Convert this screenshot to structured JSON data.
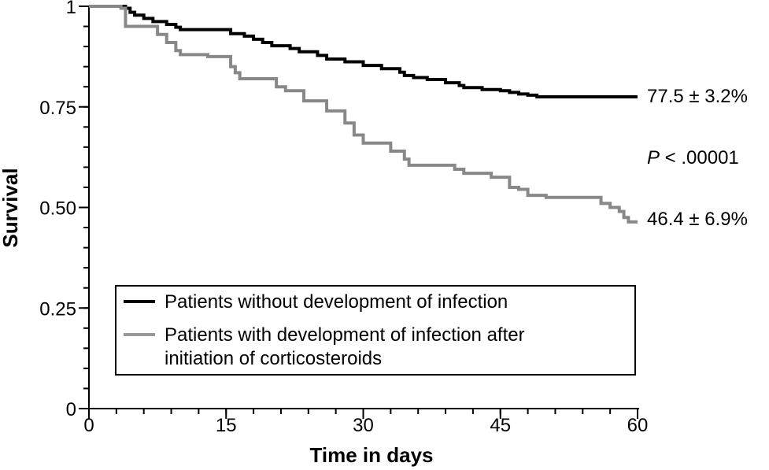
{
  "chart_data": {
    "type": "line",
    "subtype": "kaplan-meier-step",
    "xlabel": "Time in days",
    "ylabel": "Survival",
    "xlim": [
      0,
      60
    ],
    "ylim": [
      0,
      1
    ],
    "xticks": [
      0,
      15,
      30,
      45,
      60
    ],
    "xtick_labels": [
      "0",
      "15",
      "30",
      "45",
      "60"
    ],
    "yticks": [
      0,
      0.25,
      0.5,
      0.75,
      1
    ],
    "ytick_labels": [
      "0",
      "0.25",
      "0.50",
      "0.75",
      "1"
    ],
    "grid": false,
    "legend_position": "bottom-center",
    "series": [
      {
        "name": "Patients without development of infection",
        "color": "#000000",
        "end_label": "77.5 ± 3.2%",
        "points": [
          [
            0,
            1.0
          ],
          [
            4,
            0.995
          ],
          [
            4.5,
            0.985
          ],
          [
            5,
            0.978
          ],
          [
            6,
            0.97
          ],
          [
            7,
            0.962
          ],
          [
            8.5,
            0.955
          ],
          [
            9.5,
            0.948
          ],
          [
            10,
            0.942
          ],
          [
            12,
            0.942
          ],
          [
            15,
            0.942
          ],
          [
            15.5,
            0.932
          ],
          [
            17,
            0.926
          ],
          [
            18,
            0.918
          ],
          [
            19,
            0.91
          ],
          [
            20,
            0.902
          ],
          [
            22,
            0.895
          ],
          [
            23,
            0.887
          ],
          [
            25,
            0.878
          ],
          [
            26,
            0.869
          ],
          [
            28,
            0.862
          ],
          [
            30,
            0.853
          ],
          [
            32,
            0.845
          ],
          [
            34,
            0.836
          ],
          [
            34.5,
            0.828
          ],
          [
            35.5,
            0.823
          ],
          [
            37,
            0.818
          ],
          [
            39,
            0.81
          ],
          [
            40.5,
            0.803
          ],
          [
            41,
            0.798
          ],
          [
            43,
            0.793
          ],
          [
            45,
            0.79
          ],
          [
            46,
            0.786
          ],
          [
            47,
            0.782
          ],
          [
            48,
            0.779
          ],
          [
            49,
            0.775
          ],
          [
            50,
            0.775
          ],
          [
            55,
            0.775
          ],
          [
            60,
            0.775
          ]
        ]
      },
      {
        "name": "Patients with development of infection after initiation of corticosteroids",
        "color": "#888888",
        "end_label": "46.4 ± 6.9%",
        "points": [
          [
            0,
            1.0
          ],
          [
            3.5,
            0.995
          ],
          [
            4,
            0.95
          ],
          [
            7,
            0.95
          ],
          [
            7.5,
            0.93
          ],
          [
            8.5,
            0.91
          ],
          [
            9.5,
            0.89
          ],
          [
            10,
            0.88
          ],
          [
            12,
            0.88
          ],
          [
            13,
            0.875
          ],
          [
            15,
            0.875
          ],
          [
            15.5,
            0.85
          ],
          [
            16,
            0.835
          ],
          [
            16.5,
            0.82
          ],
          [
            20,
            0.82
          ],
          [
            20.5,
            0.8
          ],
          [
            21.5,
            0.79
          ],
          [
            23,
            0.79
          ],
          [
            23.5,
            0.765
          ],
          [
            25.5,
            0.765
          ],
          [
            26,
            0.74
          ],
          [
            27.5,
            0.74
          ],
          [
            28,
            0.71
          ],
          [
            29,
            0.68
          ],
          [
            30,
            0.66
          ],
          [
            32,
            0.66
          ],
          [
            33,
            0.64
          ],
          [
            34.5,
            0.62
          ],
          [
            35,
            0.605
          ],
          [
            36,
            0.605
          ],
          [
            40,
            0.595
          ],
          [
            41,
            0.585
          ],
          [
            43,
            0.585
          ],
          [
            44,
            0.575
          ],
          [
            45,
            0.575
          ],
          [
            46,
            0.55
          ],
          [
            47,
            0.545
          ],
          [
            48,
            0.53
          ],
          [
            50,
            0.525
          ],
          [
            55,
            0.525
          ],
          [
            56,
            0.51
          ],
          [
            57,
            0.5
          ],
          [
            58,
            0.49
          ],
          [
            58.5,
            0.475
          ],
          [
            59,
            0.464
          ],
          [
            60,
            0.464
          ]
        ]
      }
    ],
    "annotations": [
      {
        "text_prefix": "P",
        "text_suffix": " < .00001"
      }
    ]
  }
}
